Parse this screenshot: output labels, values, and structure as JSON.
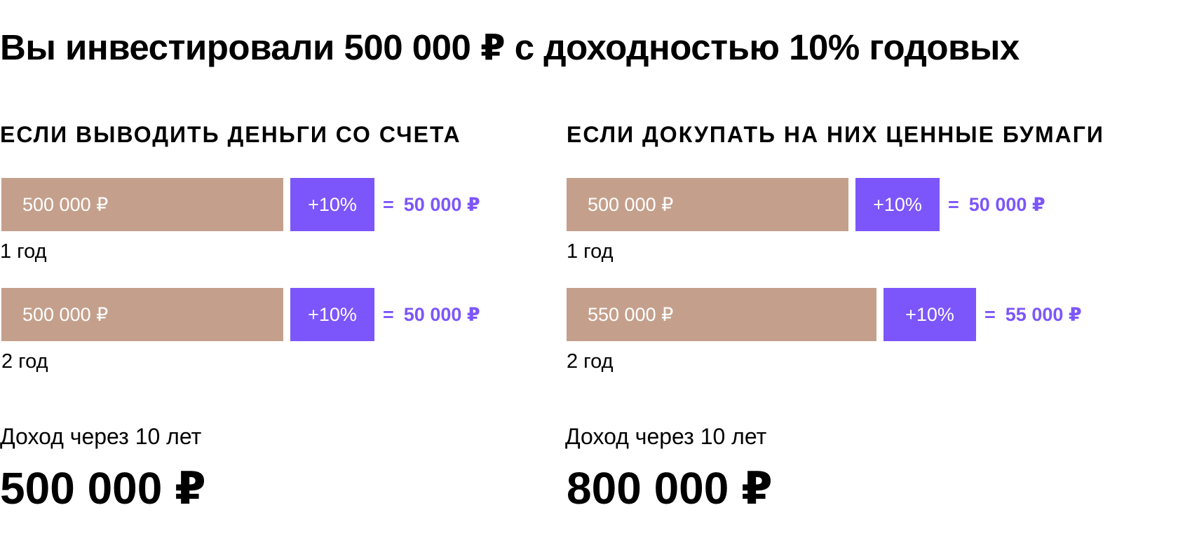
{
  "title": "Вы инвестировали 500 000 ₽ с доходностью 10% годовых",
  "colors": {
    "base_bar": "#c4a08c",
    "percent_bar": "#7c56fa",
    "result_text": "#7c56fa"
  },
  "columns": [
    {
      "heading": "ЕСЛИ ВЫВОДИТЬ ДЕНЬГИ СО СЧЕТА",
      "rows": [
        {
          "base": "500 000 ₽",
          "percent": "+10%",
          "eq": "=",
          "result": "50 000 ₽",
          "year": "1 год"
        },
        {
          "base": "500 000 ₽",
          "percent": "+10%",
          "eq": "=",
          "result": "50 000 ₽",
          "year": "2 год"
        }
      ],
      "income_label": "Доход через 10 лет",
      "income_value": "500 000 ₽"
    },
    {
      "heading": "ЕСЛИ ДОКУПАТЬ НА НИХ ЦЕННЫЕ БУМАГИ",
      "rows": [
        {
          "base": "500 000 ₽",
          "percent": "+10%",
          "eq": "=",
          "result": "50 000 ₽",
          "year": "1 год"
        },
        {
          "base": "550 000 ₽",
          "percent": "+10%",
          "eq": "=",
          "result": "55 000 ₽",
          "year": "2 год"
        }
      ],
      "income_label": "Доход через 10 лет",
      "income_value": "800 000 ₽"
    }
  ]
}
